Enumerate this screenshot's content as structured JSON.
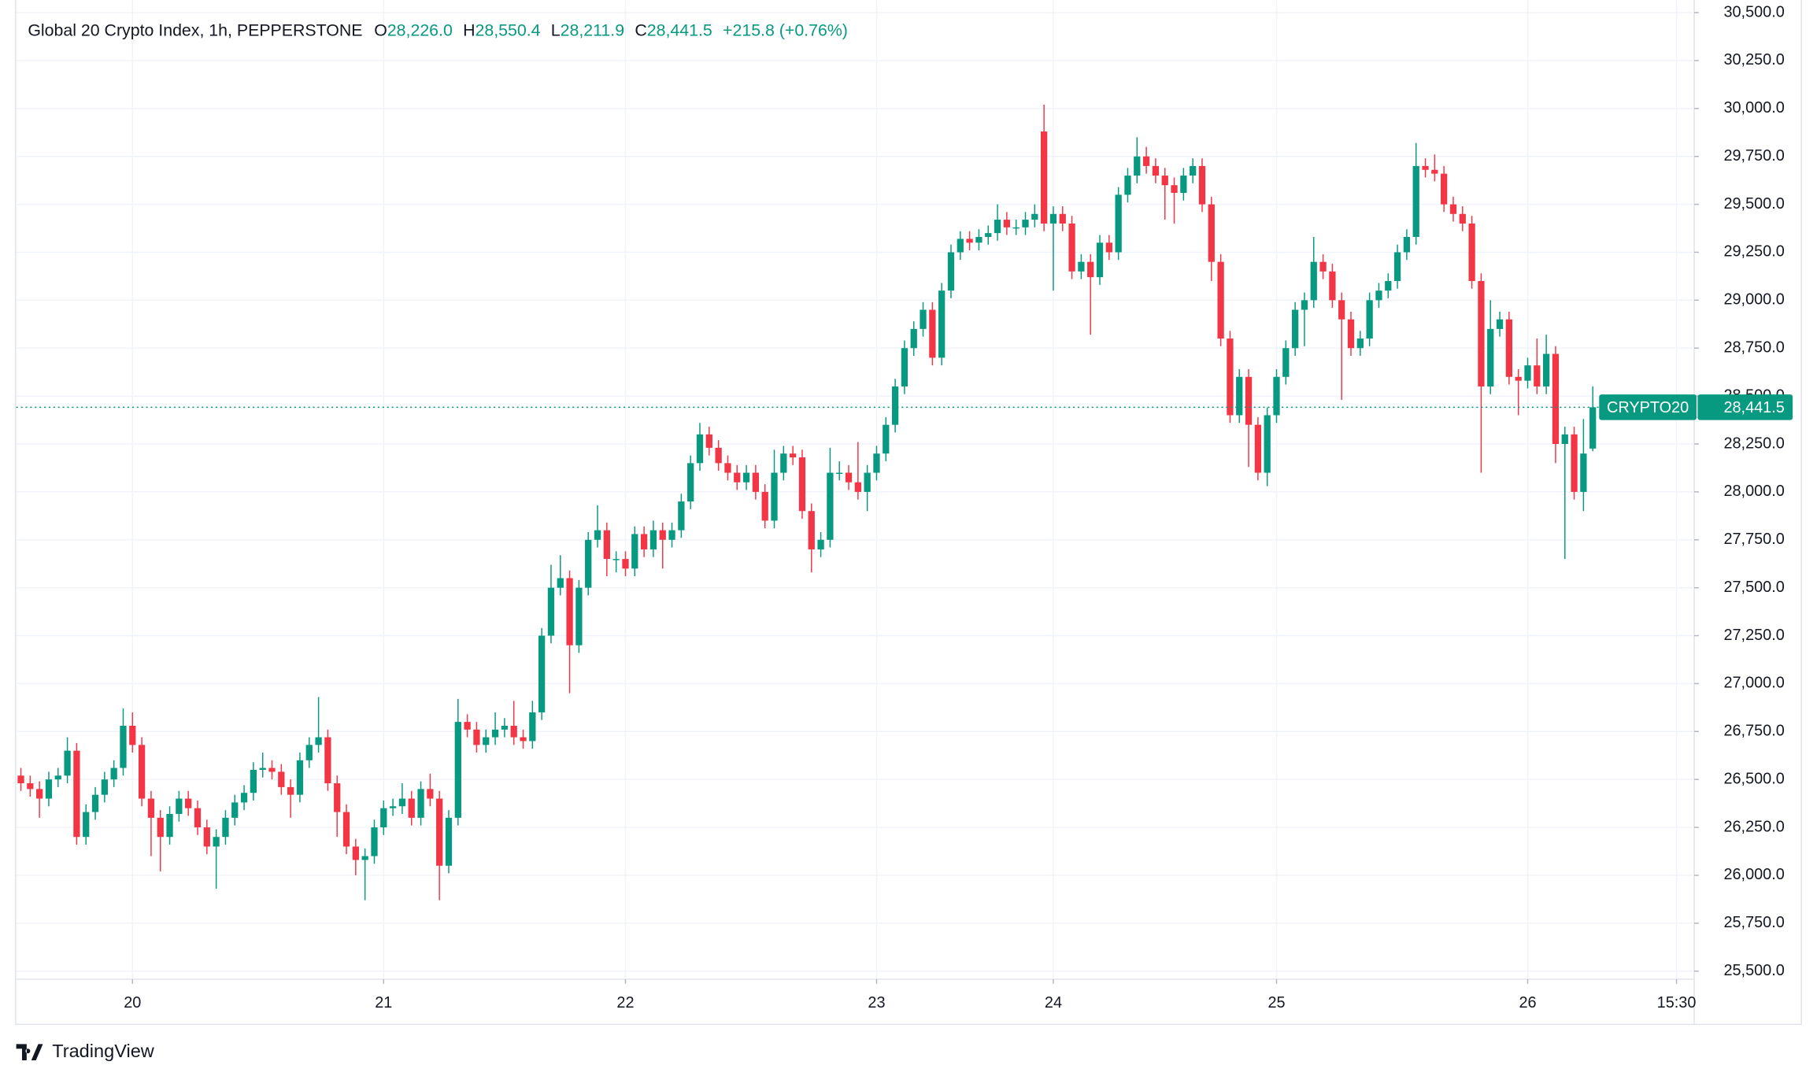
{
  "chart_data": {
    "type": "candlestick",
    "symbol": "Global 20 Crypto Index, 1h, PEPPERSTONE",
    "ohlc_header": [
      {
        "label": "O",
        "value": "28,226.0"
      },
      {
        "label": "H",
        "value": "28,550.4"
      },
      {
        "label": "L",
        "value": "28,211.9"
      },
      {
        "label": "C",
        "value": "28,441.5"
      }
    ],
    "change": "+215.8 (+0.76%)",
    "last_name": "CRYPTO20",
    "last_price_label": "28,441.5",
    "brand": "TradingView",
    "up_color": "#089981",
    "down_color": "#f23645",
    "grid": true,
    "ylim": [
      25458,
      30566
    ],
    "xlim": [
      -0.5,
      179.9
    ],
    "yticks": [
      {
        "value": 25500,
        "label": "25,500.0"
      },
      {
        "value": 25750,
        "label": "25,750.0"
      },
      {
        "value": 26000,
        "label": "26,000.0"
      },
      {
        "value": 26250,
        "label": "26,250.0"
      },
      {
        "value": 26500,
        "label": "26,500.0"
      },
      {
        "value": 26750,
        "label": "26,750.0"
      },
      {
        "value": 27000,
        "label": "27,000.0"
      },
      {
        "value": 27250,
        "label": "27,250.0"
      },
      {
        "value": 27500,
        "label": "27,500.0"
      },
      {
        "value": 27750,
        "label": "27,750.0"
      },
      {
        "value": 28000,
        "label": "28,000.0"
      },
      {
        "value": 28250,
        "label": "28,250.0"
      },
      {
        "value": 28500,
        "label": "28,500.0"
      },
      {
        "value": 28750,
        "label": "28,750.0"
      },
      {
        "value": 29000,
        "label": "29,000.0"
      },
      {
        "value": 29250,
        "label": "29,250.0"
      },
      {
        "value": 29500,
        "label": "29,500.0"
      },
      {
        "value": 29750,
        "label": "29,750.0"
      },
      {
        "value": 30000,
        "label": "30,000.0"
      },
      {
        "value": 30250,
        "label": "30,250.0"
      },
      {
        "value": 30500,
        "label": "30,500.0"
      }
    ],
    "xticks": [
      {
        "value": 12,
        "label": "20"
      },
      {
        "value": 39,
        "label": "21"
      },
      {
        "value": 65,
        "label": "22"
      },
      {
        "value": 92,
        "label": "23"
      },
      {
        "value": 111,
        "label": "24"
      },
      {
        "value": 135,
        "label": "25"
      },
      {
        "value": 162,
        "label": "26"
      },
      {
        "value": 178,
        "label": "15:30"
      }
    ],
    "candles": {
      "open": [
        26520,
        26480,
        26450,
        26400,
        26500,
        26520,
        26650,
        26200,
        26330,
        26420,
        26500,
        26560,
        26780,
        26680,
        26400,
        26300,
        26200,
        26320,
        26400,
        26350,
        26250,
        26150,
        26200,
        26300,
        26380,
        26430,
        26550,
        26560,
        26540,
        26460,
        26420,
        26600,
        26680,
        26720,
        26480,
        26330,
        26150,
        26080,
        26100,
        26250,
        26350,
        26360,
        26400,
        26300,
        26450,
        26400,
        26050,
        26300,
        26800,
        26760,
        26680,
        26720,
        26760,
        26780,
        26720,
        26700,
        26850,
        27250,
        27500,
        27550,
        27200,
        27500,
        27750,
        27800,
        27650,
        27650,
        27600,
        27780,
        27700,
        27800,
        27750,
        27800,
        27950,
        28150,
        28300,
        28230,
        28150,
        28100,
        28050,
        28100,
        28000,
        27850,
        28100,
        28200,
        28180,
        27900,
        27700,
        27750,
        28100,
        28100,
        28050,
        28000,
        28100,
        28200,
        28350,
        28550,
        28750,
        28850,
        28950,
        28700,
        29050,
        29250,
        29320,
        29300,
        29330,
        29350,
        29420,
        29380,
        29380,
        29420,
        29880,
        29400,
        29450,
        29400,
        29150,
        29200,
        29120,
        29300,
        29250,
        29550,
        29650,
        29750,
        29700,
        29650,
        29600,
        29560,
        29650,
        29700,
        29500,
        29200,
        28800,
        28400,
        28600,
        28350,
        28100,
        28400,
        28600,
        28750,
        28950,
        29000,
        29200,
        29150,
        29000,
        28900,
        28750,
        28800,
        29000,
        29050,
        29100,
        29250,
        29330,
        29700,
        29680,
        29660,
        29500,
        29450,
        29400,
        29100,
        28550,
        28850,
        28900,
        28600,
        28580,
        28660,
        28550,
        28720,
        28250,
        28300,
        28000,
        28226.0
      ],
      "high": [
        26560,
        26520,
        26490,
        26540,
        26560,
        26720,
        26690,
        26370,
        26460,
        26540,
        26600,
        26870,
        26850,
        26720,
        26440,
        26340,
        26360,
        26440,
        26440,
        26390,
        26290,
        26240,
        26340,
        26420,
        26470,
        26590,
        26640,
        26600,
        26580,
        26500,
        26640,
        26720,
        26930,
        26760,
        26520,
        26370,
        26190,
        26140,
        26290,
        26390,
        26400,
        26480,
        26440,
        26490,
        26530,
        26440,
        26340,
        26920,
        26840,
        26800,
        26760,
        26850,
        26820,
        26910,
        26760,
        26910,
        27290,
        27620,
        27670,
        27590,
        27540,
        27790,
        27930,
        27840,
        27690,
        27690,
        27820,
        27820,
        27850,
        27840,
        27840,
        27990,
        28190,
        28360,
        28340,
        28270,
        28190,
        28140,
        28140,
        28140,
        28040,
        28220,
        28240,
        28240,
        28220,
        27940,
        27790,
        28230,
        28160,
        28140,
        28260,
        28140,
        28240,
        28390,
        28590,
        28790,
        28890,
        28990,
        28990,
        29090,
        29290,
        29360,
        29360,
        29370,
        29390,
        29500,
        29460,
        29420,
        29460,
        29500,
        30020,
        29490,
        29490,
        29440,
        29240,
        29240,
        29340,
        29340,
        29590,
        29690,
        29850,
        29800,
        29740,
        29690,
        29640,
        29690,
        29740,
        29740,
        29540,
        29240,
        28840,
        28640,
        28640,
        28390,
        28440,
        28640,
        28790,
        28990,
        29040,
        29330,
        29240,
        29190,
        29040,
        28940,
        28840,
        29040,
        29090,
        29140,
        29290,
        29370,
        29820,
        29740,
        29760,
        29700,
        29540,
        29490,
        29440,
        29140,
        29000,
        28940,
        28940,
        28640,
        28700,
        28800,
        28820,
        28760,
        28340,
        28340,
        28380,
        28550.4
      ],
      "low": [
        26440,
        26410,
        26300,
        26360,
        26460,
        26480,
        26160,
        26160,
        26290,
        26380,
        26460,
        26520,
        26640,
        26360,
        26100,
        26020,
        26160,
        26280,
        26310,
        26210,
        26110,
        25930,
        26160,
        26260,
        26340,
        26390,
        26510,
        26500,
        26420,
        26300,
        26380,
        26560,
        26640,
        26440,
        26200,
        26110,
        26000,
        25870,
        26060,
        26210,
        26310,
        26320,
        26260,
        26260,
        26360,
        25870,
        26010,
        26260,
        26720,
        26640,
        26640,
        26680,
        26720,
        26680,
        26660,
        26660,
        26810,
        27210,
        27460,
        26950,
        27160,
        27460,
        27710,
        27560,
        27580,
        27560,
        27560,
        27660,
        27660,
        27600,
        27710,
        27760,
        27910,
        28110,
        28190,
        28110,
        28060,
        28010,
        28010,
        27960,
        27810,
        27810,
        28060,
        28140,
        27860,
        27580,
        27660,
        27710,
        28060,
        28010,
        27960,
        27900,
        28060,
        28160,
        28310,
        28510,
        28710,
        28810,
        28660,
        28660,
        29010,
        29210,
        29260,
        29260,
        29290,
        29310,
        29340,
        29340,
        29340,
        29380,
        29360,
        29050,
        29360,
        29110,
        29110,
        28820,
        29080,
        29210,
        29210,
        29510,
        29610,
        29660,
        29610,
        29420,
        29400,
        29520,
        29610,
        29460,
        29100,
        28760,
        28360,
        28360,
        28130,
        28060,
        28030,
        28360,
        28560,
        28710,
        28760,
        28960,
        29110,
        28960,
        28480,
        28710,
        28710,
        28760,
        28960,
        29010,
        29060,
        29210,
        29290,
        29640,
        29620,
        29460,
        29410,
        29360,
        29060,
        28100,
        28510,
        28810,
        28560,
        28400,
        28540,
        28510,
        28510,
        28150,
        27650,
        27960,
        27900,
        28211.9
      ],
      "close": [
        26480,
        26450,
        26400,
        26500,
        26520,
        26650,
        26200,
        26330,
        26420,
        26500,
        26560,
        26780,
        26680,
        26400,
        26300,
        26200,
        26320,
        26400,
        26350,
        26250,
        26150,
        26200,
        26300,
        26380,
        26430,
        26550,
        26560,
        26540,
        26460,
        26420,
        26600,
        26680,
        26720,
        26480,
        26330,
        26150,
        26080,
        26100,
        26250,
        26350,
        26360,
        26400,
        26300,
        26450,
        26400,
        26050,
        26300,
        26800,
        26760,
        26680,
        26720,
        26760,
        26780,
        26720,
        26700,
        26850,
        27250,
        27500,
        27550,
        27200,
        27500,
        27750,
        27800,
        27650,
        27650,
        27600,
        27780,
        27700,
        27800,
        27750,
        27800,
        27950,
        28150,
        28300,
        28230,
        28150,
        28100,
        28050,
        28100,
        28000,
        27850,
        28100,
        28200,
        28180,
        27900,
        27700,
        27750,
        28100,
        28100,
        28050,
        28000,
        28100,
        28200,
        28350,
        28550,
        28750,
        28850,
        28950,
        28700,
        29050,
        29250,
        29320,
        29300,
        29330,
        29350,
        29420,
        29380,
        29380,
        29420,
        29450,
        29400,
        29450,
        29400,
        29150,
        29200,
        29120,
        29300,
        29250,
        29550,
        29650,
        29750,
        29700,
        29650,
        29600,
        29560,
        29650,
        29700,
        29500,
        29200,
        28800,
        28400,
        28600,
        28350,
        28100,
        28400,
        28600,
        28750,
        28950,
        29000,
        29200,
        29150,
        29000,
        28900,
        28750,
        28800,
        29000,
        29050,
        29100,
        29250,
        29330,
        29700,
        29680,
        29660,
        29500,
        29450,
        29400,
        29100,
        28550,
        28850,
        28900,
        28600,
        28580,
        28660,
        28550,
        28720,
        28250,
        28300,
        28000,
        28200,
        28441.5
      ]
    }
  }
}
